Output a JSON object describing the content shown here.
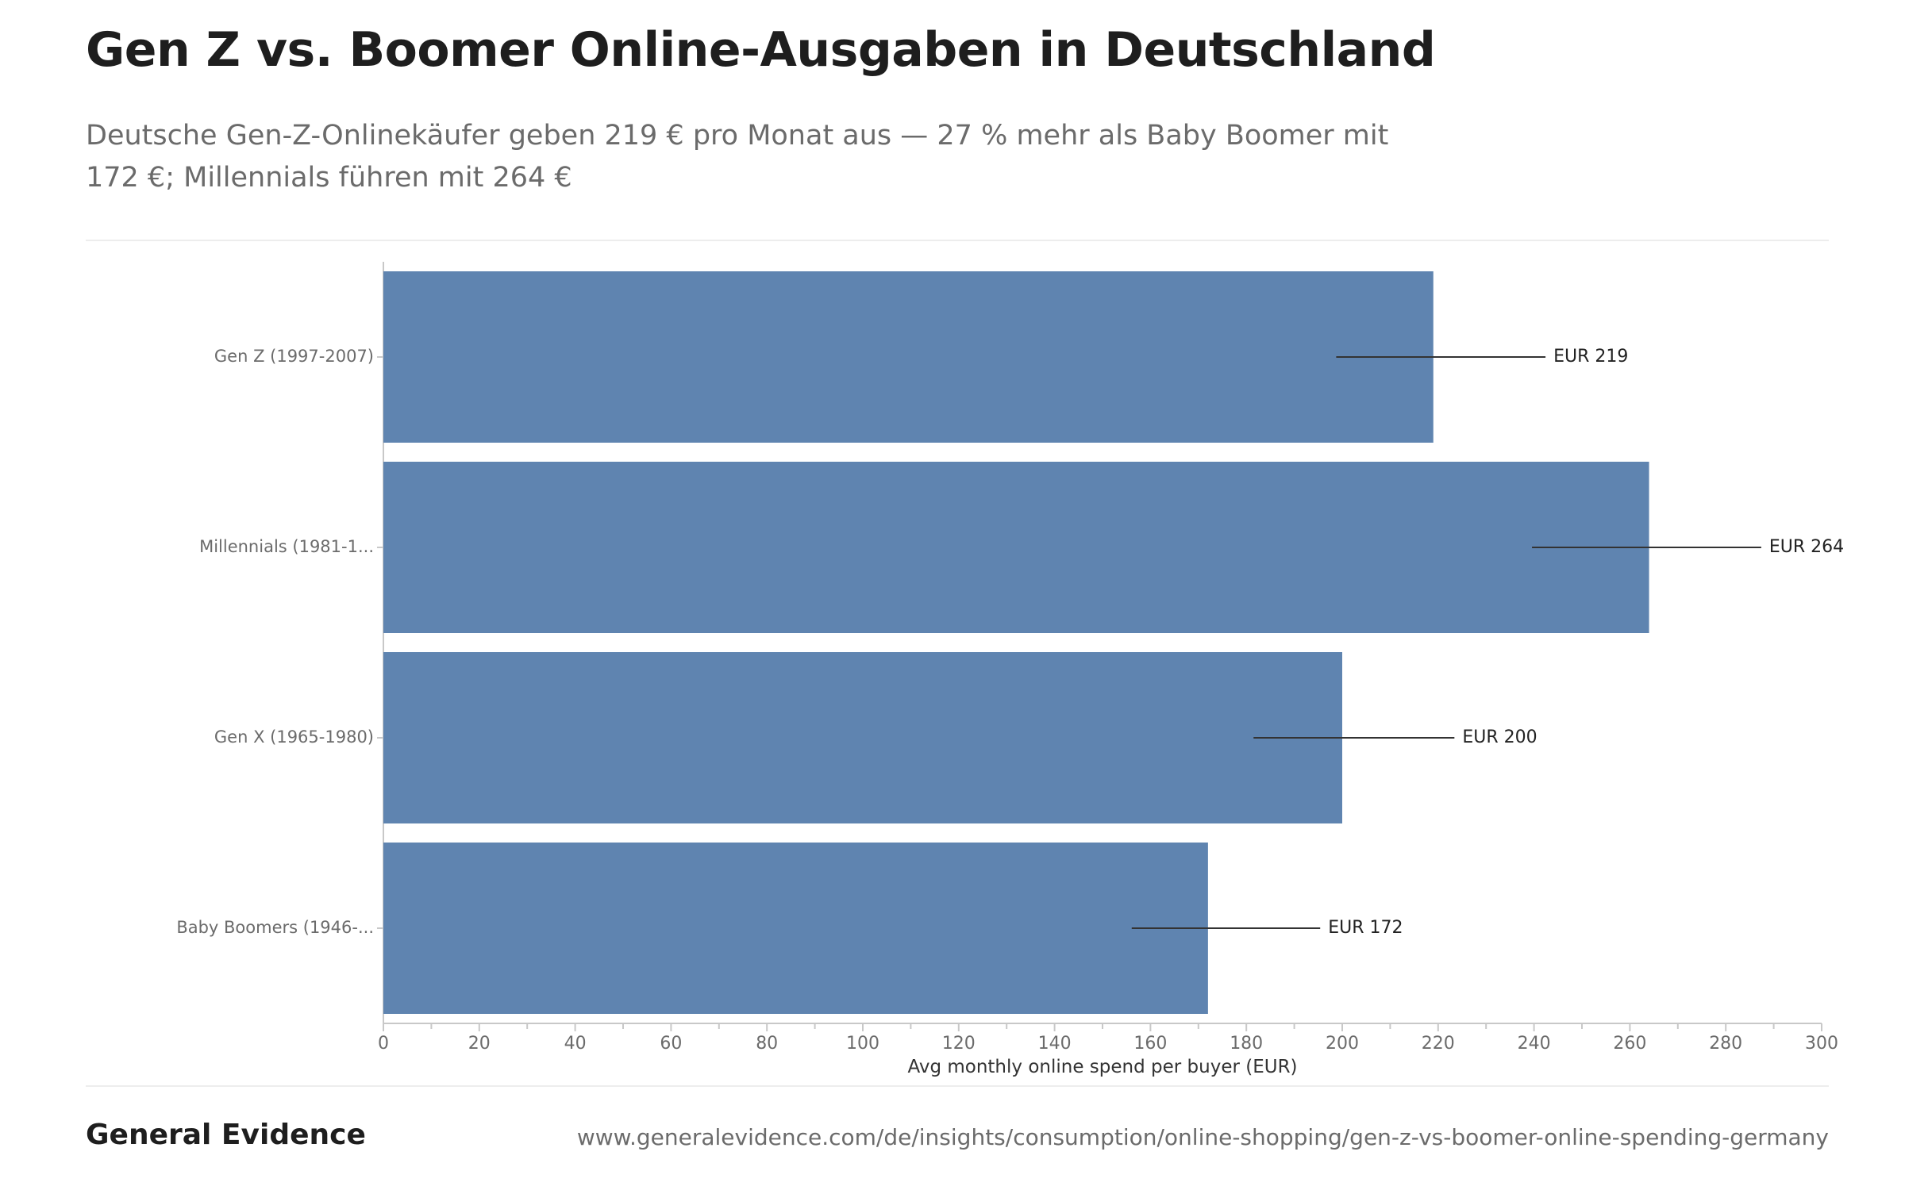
{
  "title": "Gen Z vs. Boomer Online-Ausgaben in Deutschland",
  "subtitle": "Deutsche Gen-Z-Onlinekäufer geben 219 € pro Monat aus — 27 % mehr als Baby Boomer mit 172 €; Millennials führen mit 264 €",
  "footer": {
    "brand": "General Evidence",
    "url": "www.generalevidence.com/de/insights/consumption/online-shopping/gen-z-vs-boomer-online-spending-germany"
  },
  "chart_data": {
    "type": "bar",
    "orientation": "horizontal",
    "categories": [
      "Gen Z (1997-2007)",
      "Millennials (1981-1...",
      "Gen X (1965-1980)",
      "Baby Boomers (1946-..."
    ],
    "values": [
      219,
      264,
      200,
      172
    ],
    "value_labels": [
      "EUR 219",
      "EUR 264",
      "EUR 200",
      "EUR 172"
    ],
    "xlabel": "Avg monthly online spend per buyer (EUR)",
    "ylabel": "",
    "xlim": [
      0,
      300
    ],
    "ticks": [
      0,
      20,
      40,
      60,
      80,
      100,
      120,
      140,
      160,
      180,
      200,
      220,
      240,
      260,
      280,
      300
    ],
    "grid": false,
    "legend": "none",
    "bar_color": "#5f84b0"
  }
}
